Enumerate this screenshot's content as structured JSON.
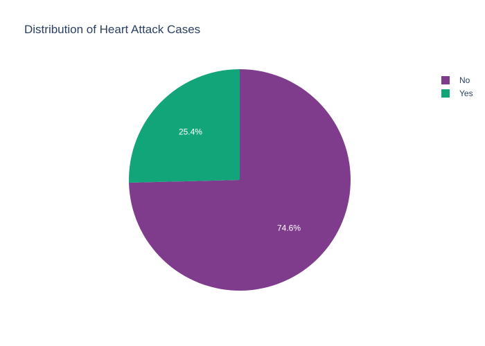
{
  "chart_data": {
    "type": "pie",
    "title": "Distribution of Heart Attack Cases",
    "slices": [
      {
        "label": "No",
        "value": 74.6,
        "text": "74.6%",
        "color": "#7f3c8d"
      },
      {
        "label": "Yes",
        "value": 25.4,
        "text": "25.4%",
        "color": "#11a579"
      }
    ],
    "legend_position": "top-right"
  }
}
